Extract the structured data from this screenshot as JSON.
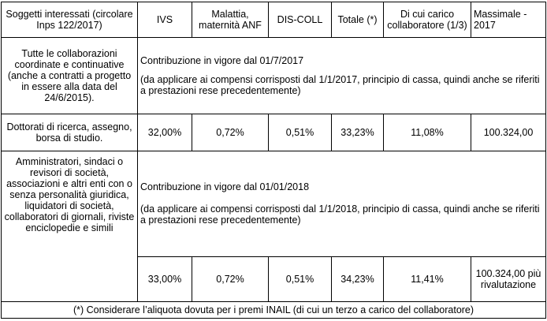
{
  "header": {
    "soggetti": "Soggetti interessati (circolare Inps 122/2017)",
    "ivs": "IVS",
    "malattia": "Malattia, maternità ANF",
    "discoll": "DIS-COLL",
    "totale": "Totale (*)",
    "carico": "Di cui carico collaboratore (1/3)",
    "massimale": "Massimale - 2017"
  },
  "group1": {
    "subjects": "Tutte le collaborazioni coordinate e continuative (anche a contratti a progetto in essere alla data del 24/6/2015).",
    "subjects2": "Dottorati di ricerca, assegno, borsa di studio.",
    "note_title": "Contribuzione in vigore dal 01/7/2017",
    "note_body": "(da applicare ai compensi corrisposti dal 1/1/2017, principio di cassa, quindi anche se riferiti a prestazioni rese precedentemente)",
    "values": {
      "ivs": "32,00%",
      "malattia": "0,72%",
      "discoll": "0,51%",
      "totale": "33,23%",
      "carico": "11,08%",
      "massimale": "100.324,00"
    }
  },
  "group2": {
    "subjects": "Amministratori, sindaci o revisori di società, associazioni e altri enti con o senza personalità giuridica, liquidatori di società, collaboratori di giornali, riviste enciclopedie e simili",
    "note_title": "Contribuzione in vigore dal 01/01/2018",
    "note_body": "(da applicare ai compensi corrisposti dal 1/1/2018, principio di cassa, quindi anche se riferiti a prestazioni rese precedentemente)",
    "values": {
      "ivs": "33,00%",
      "malattia": "0,72%",
      "discoll": "0,51%",
      "totale": "34,23%",
      "carico": "11,41%",
      "massimale": "100.324,00 più rivalutazione"
    }
  },
  "footnote": "(*) Considerare l’aliquota dovuta per i premi INAIL (di cui un terzo a carico del collaboratore)"
}
